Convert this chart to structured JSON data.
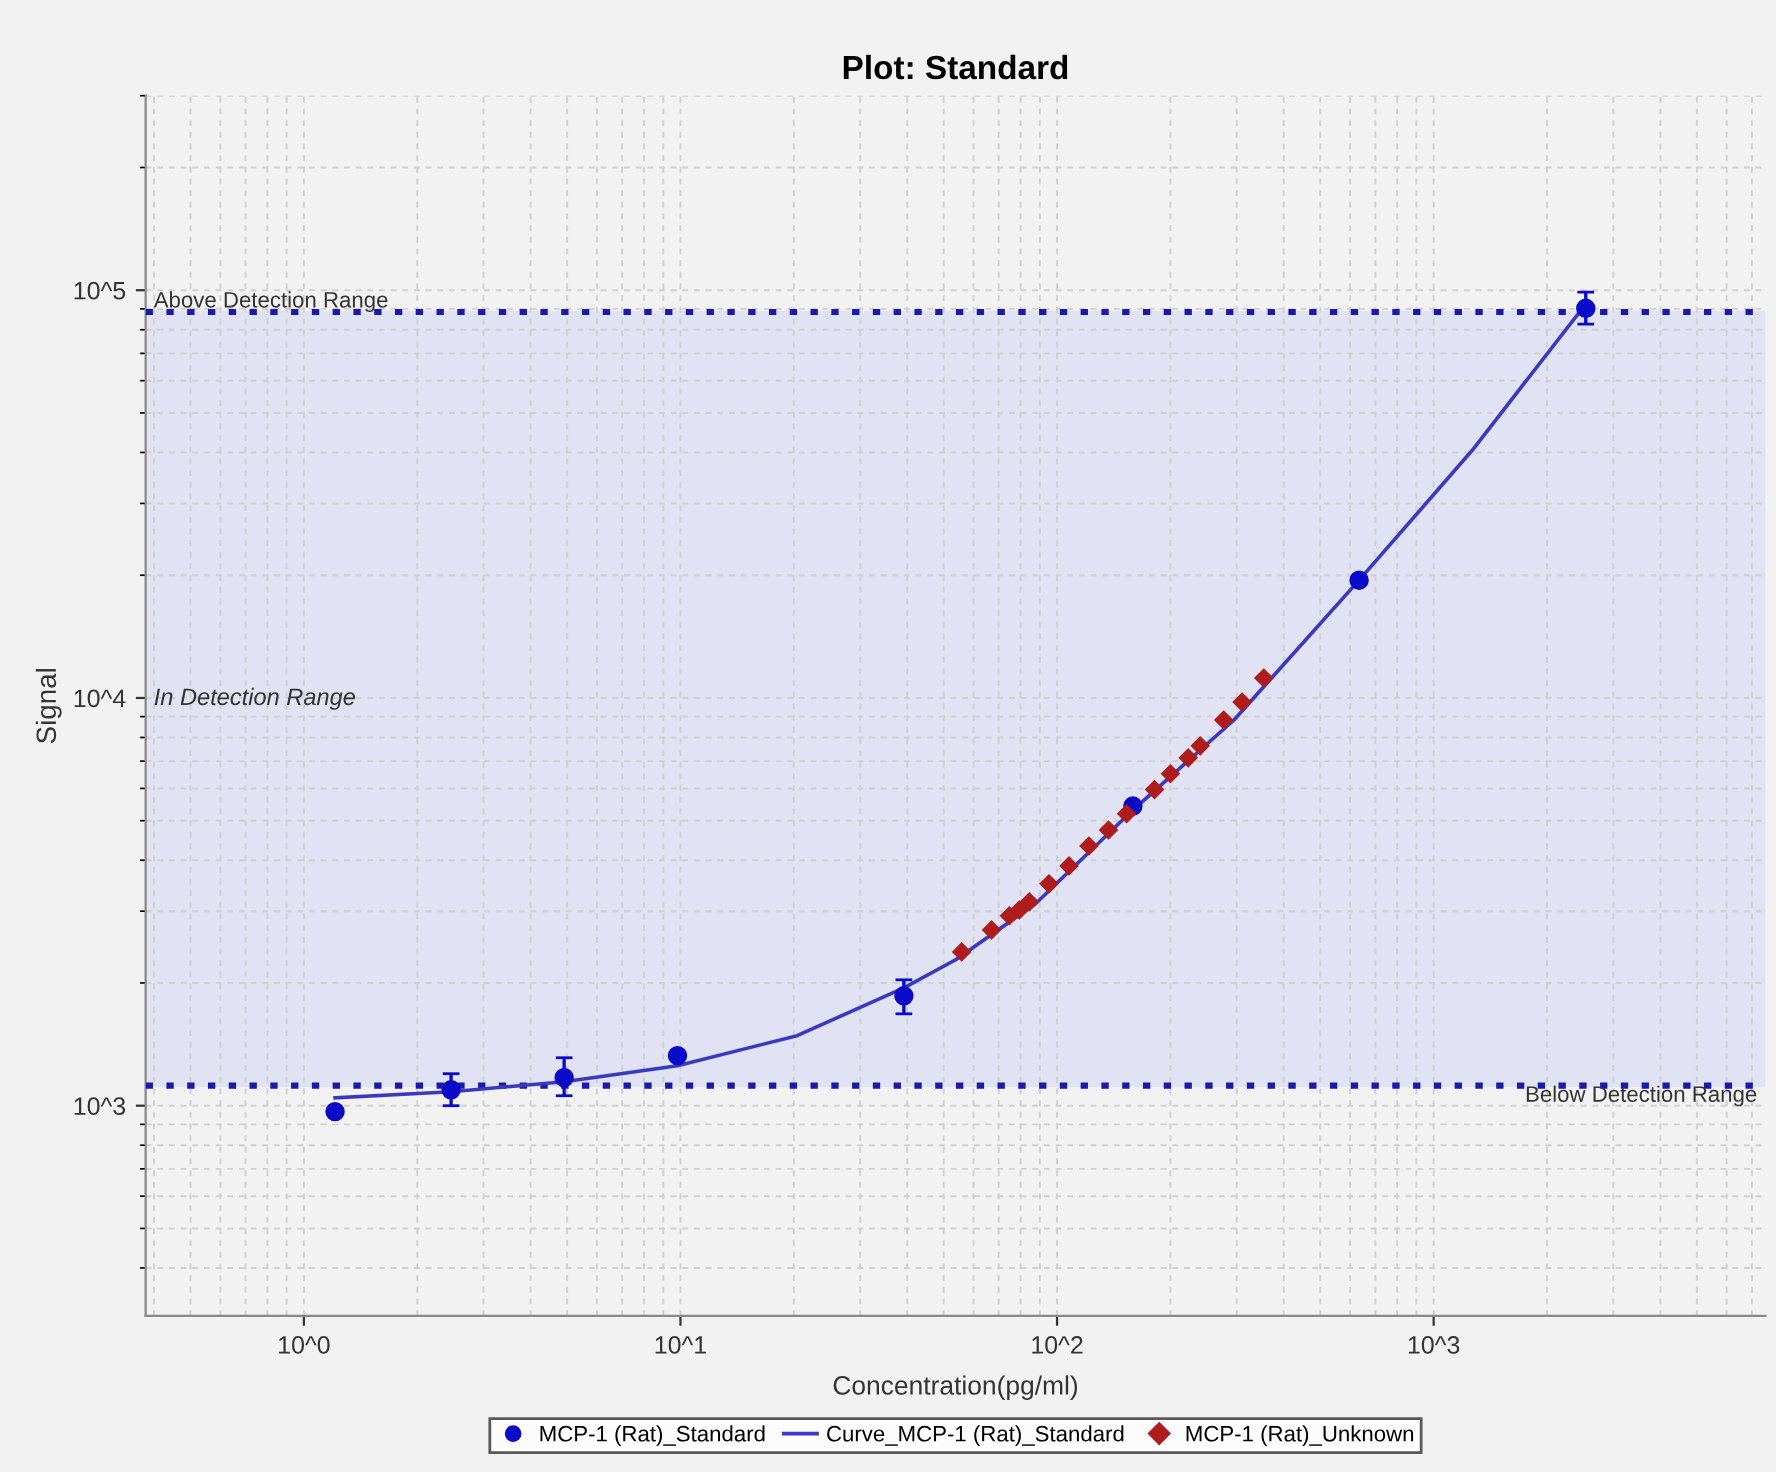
{
  "chart_data": {
    "type": "scatter",
    "title": "Plot: Standard",
    "xlabel": "Concentration(pg/ml)",
    "ylabel": "Signal",
    "log": "xy",
    "grid": true,
    "legend": "bottom",
    "xlim": [
      0.38,
      7600
    ],
    "ylim": [
      305,
      300000
    ],
    "xticks": [
      {
        "value": 1,
        "label": "10^0"
      },
      {
        "value": 10,
        "label": "10^1"
      },
      {
        "value": 100,
        "label": "10^2"
      },
      {
        "value": 1000,
        "label": "10^3"
      }
    ],
    "yticks": [
      {
        "value": 1000,
        "label": "10^3"
      },
      {
        "value": 10000,
        "label": "10^4"
      },
      {
        "value": 100000,
        "label": "10^5"
      }
    ],
    "ref_lines": [
      {
        "axis": "y",
        "value": 88400,
        "label": "Above Detection Range",
        "color": "#1a1aa8",
        "line_style": "dotted"
      },
      {
        "axis": "y",
        "value": 1120,
        "label": "Below Detection Range",
        "color": "#1a1aa8",
        "line_style": "dotted"
      }
    ],
    "bands": [
      {
        "axis": "y",
        "from": 1120,
        "to": 88400,
        "label": "In Detection Range",
        "color": "#e1e2f3"
      }
    ],
    "series": [
      {
        "name": "MCP-1 (Rat)_Standard",
        "color": "#0a0ac8",
        "marker": "circle",
        "x": [
          1.21,
          2.46,
          4.91,
          9.82,
          39.2,
          159,
          634,
          2535
        ],
        "values": [
          967,
          1094,
          1171,
          1326,
          1860,
          5430,
          19450,
          90300
        ],
        "errors": [
          null,
          [
            1000,
            1198
          ],
          [
            1058,
            1311
          ],
          null,
          [
            1680,
            2036
          ],
          null,
          null,
          [
            82600,
            98900
          ]
        ]
      },
      {
        "name": "Curve_MCP-1 (Rat)_Standard",
        "type": "line",
        "color": "#3a3ac0",
        "marker": "none",
        "line_style": "solid",
        "x": [
          1.21,
          2.46,
          4.91,
          9.82,
          20.4,
          39.2,
          53.8,
          87.5,
          159,
          295,
          634,
          1268,
          2535
        ],
        "values": [
          1046,
          1082,
          1145,
          1253,
          1485,
          1946,
          2280,
          3124,
          5310,
          8830,
          19450,
          40550,
          92500
        ]
      },
      {
        "name": "MCP-1 (Rat)_Unknown",
        "color": "#b01c1c",
        "marker": "diamond",
        "x": [
          55.8,
          67.0,
          74.7,
          79.4,
          84.4,
          95.2,
          107.6,
          121.5,
          137,
          153,
          181.5,
          200,
          223,
          240,
          277,
          310,
          354
        ],
        "values": [
          2383,
          2698,
          2924,
          3020,
          3162,
          3500,
          3873,
          4335,
          4745,
          5200,
          5960,
          6520,
          7130,
          7630,
          8830,
          9770,
          11190
        ]
      }
    ]
  }
}
